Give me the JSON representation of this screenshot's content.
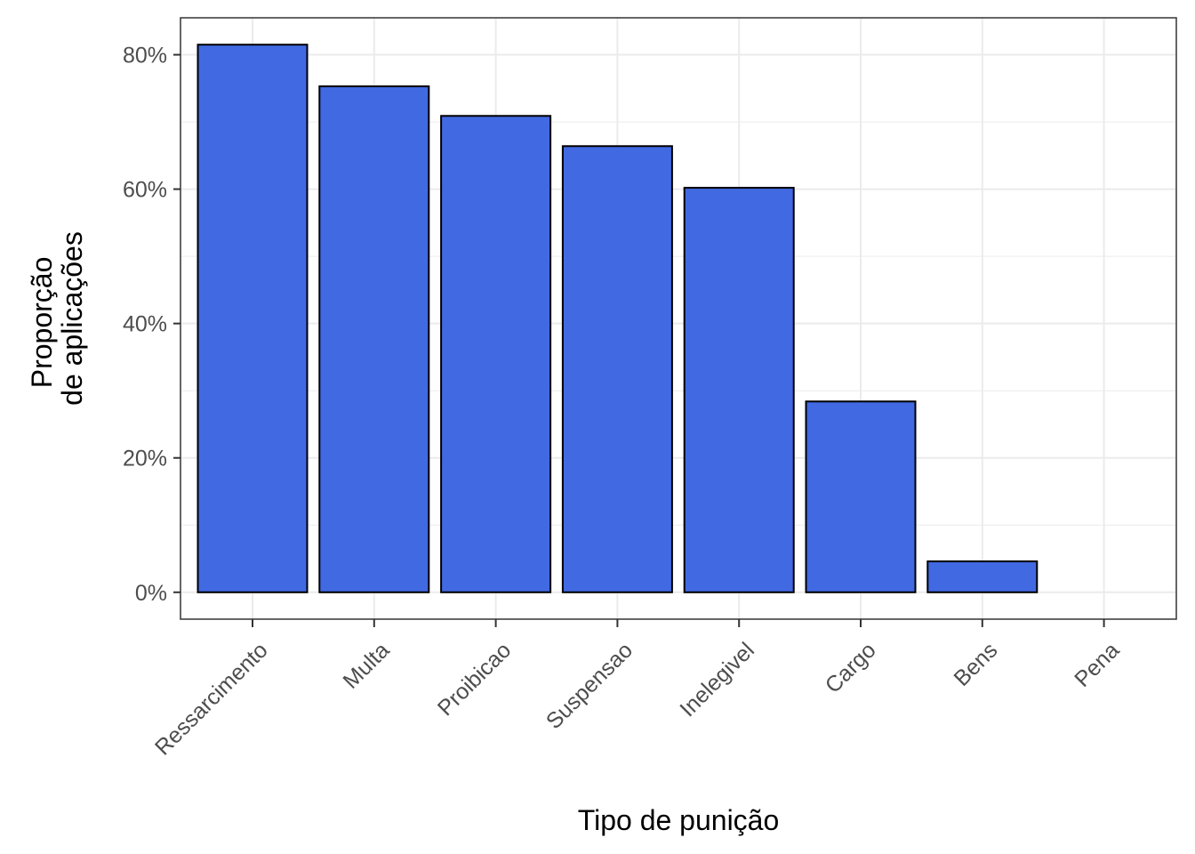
{
  "chart_data": {
    "type": "bar",
    "categories": [
      "Ressarcimento",
      "Multa",
      "Proibicao",
      "Suspensao",
      "Inelegivel",
      "Cargo",
      "Bens",
      "Pena"
    ],
    "values": [
      0.815,
      0.753,
      0.709,
      0.664,
      0.602,
      0.284,
      0.046,
      0.0
    ],
    "xlabel": "Tipo de punição",
    "ylabel": [
      "Proporção",
      "de aplicações"
    ],
    "ylim": [
      -0.04,
      0.855
    ],
    "yticks": [
      0,
      0.2,
      0.4,
      0.6,
      0.8
    ],
    "ytick_labels": [
      "0%",
      "20%",
      "40%",
      "60%",
      "80%"
    ],
    "grid": true,
    "bar_fill": "#4169e1",
    "bar_outline": "#000000",
    "panel_border": "#333333",
    "grid_color": "#ebebeb"
  }
}
